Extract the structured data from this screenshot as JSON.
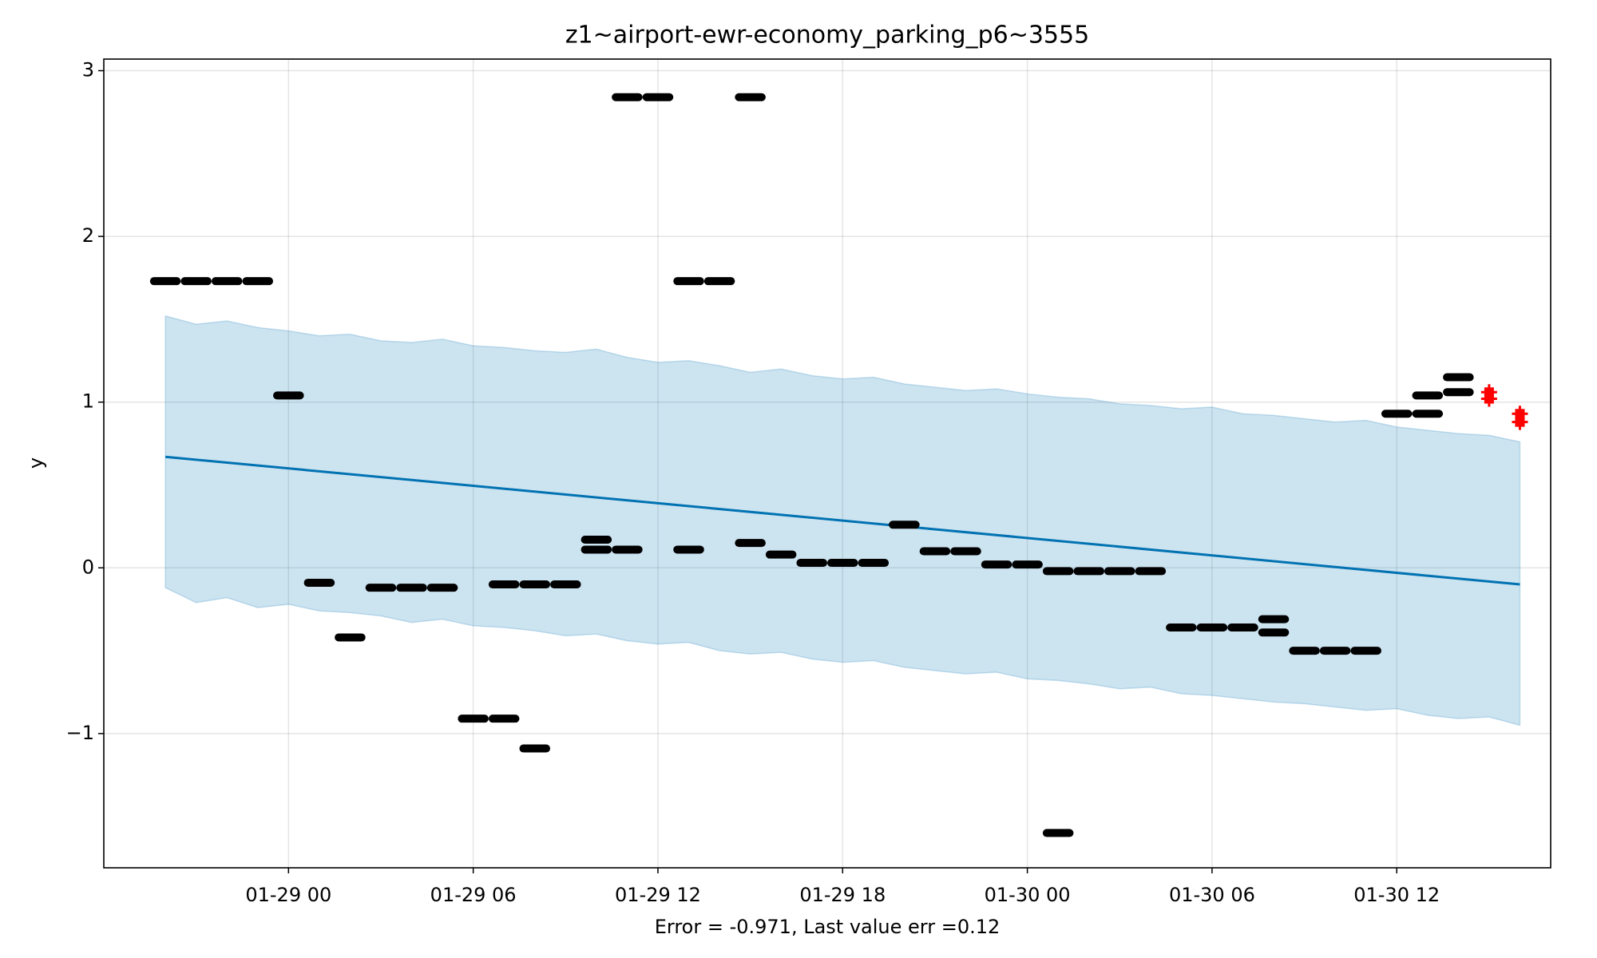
{
  "chart_data": {
    "type": "forecast",
    "title": "z1~airport-ewr-economy_parking_p6~3555",
    "xlabel": "Error = -0.971, Last value err =0.12",
    "ylabel": "y",
    "xlim": [
      "01-28 18",
      "01-30 17"
    ],
    "xticks": [
      "01-29 00",
      "01-29 06",
      "01-29 12",
      "01-29 18",
      "01-30 00",
      "01-30 06",
      "01-30 12"
    ],
    "ylim": [
      -1.81,
      3.07
    ],
    "yticks": [
      {
        "value": -1,
        "label": "−1"
      },
      0,
      1,
      2,
      3
    ],
    "grid": true,
    "band": {
      "color": "#0072b2",
      "x": [
        "01-28 20",
        "01-28 21",
        "01-28 22",
        "01-28 23",
        "01-29 00",
        "01-29 01",
        "01-29 02",
        "01-29 03",
        "01-29 04",
        "01-29 05",
        "01-29 06",
        "01-29 07",
        "01-29 08",
        "01-29 09",
        "01-29 10",
        "01-29 11",
        "01-29 12",
        "01-29 13",
        "01-29 14",
        "01-29 15",
        "01-29 16",
        "01-29 17",
        "01-29 18",
        "01-29 19",
        "01-29 20",
        "01-29 21",
        "01-29 22",
        "01-29 23",
        "01-30 00",
        "01-30 01",
        "01-30 02",
        "01-30 03",
        "01-30 04",
        "01-30 05",
        "01-30 06",
        "01-30 07",
        "01-30 08",
        "01-30 09",
        "01-30 10",
        "01-30 11",
        "01-30 12",
        "01-30 13",
        "01-30 14",
        "01-30 15",
        "01-30 16"
      ],
      "upper": [
        1.52,
        1.47,
        1.49,
        1.45,
        1.43,
        1.4,
        1.41,
        1.37,
        1.36,
        1.38,
        1.34,
        1.33,
        1.31,
        1.3,
        1.32,
        1.27,
        1.24,
        1.25,
        1.22,
        1.18,
        1.2,
        1.16,
        1.14,
        1.15,
        1.11,
        1.09,
        1.07,
        1.08,
        1.05,
        1.03,
        1.02,
        0.99,
        0.98,
        0.96,
        0.97,
        0.93,
        0.92,
        0.9,
        0.88,
        0.89,
        0.85,
        0.83,
        0.81,
        0.8,
        0.76
      ],
      "lower": [
        -0.12,
        -0.21,
        -0.18,
        -0.24,
        -0.22,
        -0.26,
        -0.27,
        -0.29,
        -0.33,
        -0.31,
        -0.35,
        -0.36,
        -0.38,
        -0.41,
        -0.4,
        -0.44,
        -0.46,
        -0.45,
        -0.5,
        -0.52,
        -0.51,
        -0.55,
        -0.57,
        -0.56,
        -0.6,
        -0.62,
        -0.64,
        -0.63,
        -0.67,
        -0.68,
        -0.7,
        -0.73,
        -0.72,
        -0.76,
        -0.77,
        -0.79,
        -0.81,
        -0.82,
        -0.84,
        -0.86,
        -0.85,
        -0.89,
        -0.91,
        -0.9,
        -0.95
      ]
    },
    "forecast": {
      "color": "#0072b2",
      "x": [
        "01-28 20",
        "01-30 16"
      ],
      "values": [
        0.67,
        -0.1
      ]
    },
    "observed": {
      "color": "#000000",
      "x": [
        "01-28 20",
        "01-28 21",
        "01-28 22",
        "01-28 23",
        "01-29 00",
        "01-29 01",
        "01-29 02",
        "01-29 03",
        "01-29 04",
        "01-29 05",
        "01-29 06",
        "01-29 07",
        "01-29 07",
        "01-29 08",
        "01-29 08",
        "01-29 09",
        "01-29 10",
        "01-29 10",
        "01-29 11",
        "01-29 11",
        "01-29 12",
        "01-29 13",
        "01-29 13",
        "01-29 14",
        "01-29 15",
        "01-29 15",
        "01-29 16",
        "01-29 17",
        "01-29 18",
        "01-29 19",
        "01-29 20",
        "01-29 21",
        "01-29 22",
        "01-29 23",
        "01-30 00",
        "01-30 01",
        "01-30 01",
        "01-30 02",
        "01-30 03",
        "01-30 04",
        "01-30 05",
        "01-30 06",
        "01-30 07",
        "01-30 08",
        "01-30 08",
        "01-30 09",
        "01-30 10",
        "01-30 11",
        "01-30 12",
        "01-30 13",
        "01-30 13",
        "01-30 14",
        "01-30 14"
      ],
      "values": [
        1.73,
        1.73,
        1.73,
        1.73,
        1.04,
        -0.09,
        -0.42,
        -0.12,
        -0.12,
        -0.12,
        -0.91,
        -0.91,
        -0.1,
        -1.09,
        -0.1,
        -0.1,
        0.17,
        0.11,
        0.11,
        2.84,
        2.84,
        0.11,
        1.73,
        1.73,
        0.15,
        2.84,
        0.08,
        0.03,
        0.03,
        0.03,
        0.26,
        0.1,
        0.1,
        0.02,
        0.02,
        -1.6,
        -0.02,
        -0.02,
        -0.02,
        -0.02,
        -0.36,
        -0.36,
        -0.36,
        -0.39,
        -0.31,
        -0.5,
        -0.5,
        -0.5,
        0.93,
        0.93,
        1.04,
        1.15,
        1.06
      ]
    },
    "future": {
      "color": "#ff0000",
      "x": [
        "01-30 15",
        "01-30 15",
        "01-30 16",
        "01-30 16"
      ],
      "values": [
        1.06,
        1.02,
        0.88,
        0.93
      ]
    }
  }
}
